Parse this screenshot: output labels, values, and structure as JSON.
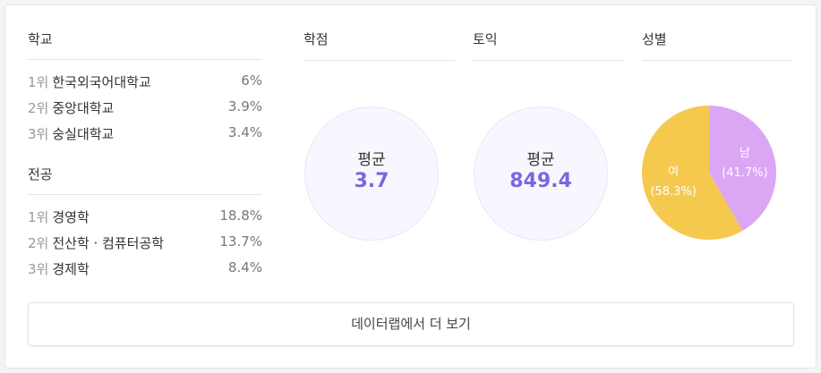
{
  "school": {
    "title": "학교",
    "items": [
      {
        "rank": "1위",
        "name": "한국외국어대학교",
        "value": "6%"
      },
      {
        "rank": "2위",
        "name": "중앙대학교",
        "value": "3.9%"
      },
      {
        "rank": "3위",
        "name": "숭실대학교",
        "value": "3.4%"
      }
    ]
  },
  "major": {
    "title": "전공",
    "items": [
      {
        "rank": "1위",
        "name": "경영학",
        "value": "18.8%"
      },
      {
        "rank": "2위",
        "name": "전산학 · 컴퓨터공학",
        "value": "13.7%"
      },
      {
        "rank": "3위",
        "name": "경제학",
        "value": "8.4%"
      }
    ]
  },
  "gpa": {
    "title": "학점",
    "label": "평균",
    "value": "3.7"
  },
  "toeic": {
    "title": "토익",
    "label": "평균",
    "value": "849.4"
  },
  "chart_data": {
    "type": "pie",
    "title": "성별",
    "categories": [
      "남",
      "여"
    ],
    "values": [
      41.7,
      58.3
    ],
    "value_labels": [
      "(41.7%)",
      "(58.3%)"
    ],
    "colors": [
      "#dba6f4",
      "#f5c94d"
    ]
  },
  "button": "데이터랩에서 더 보기"
}
